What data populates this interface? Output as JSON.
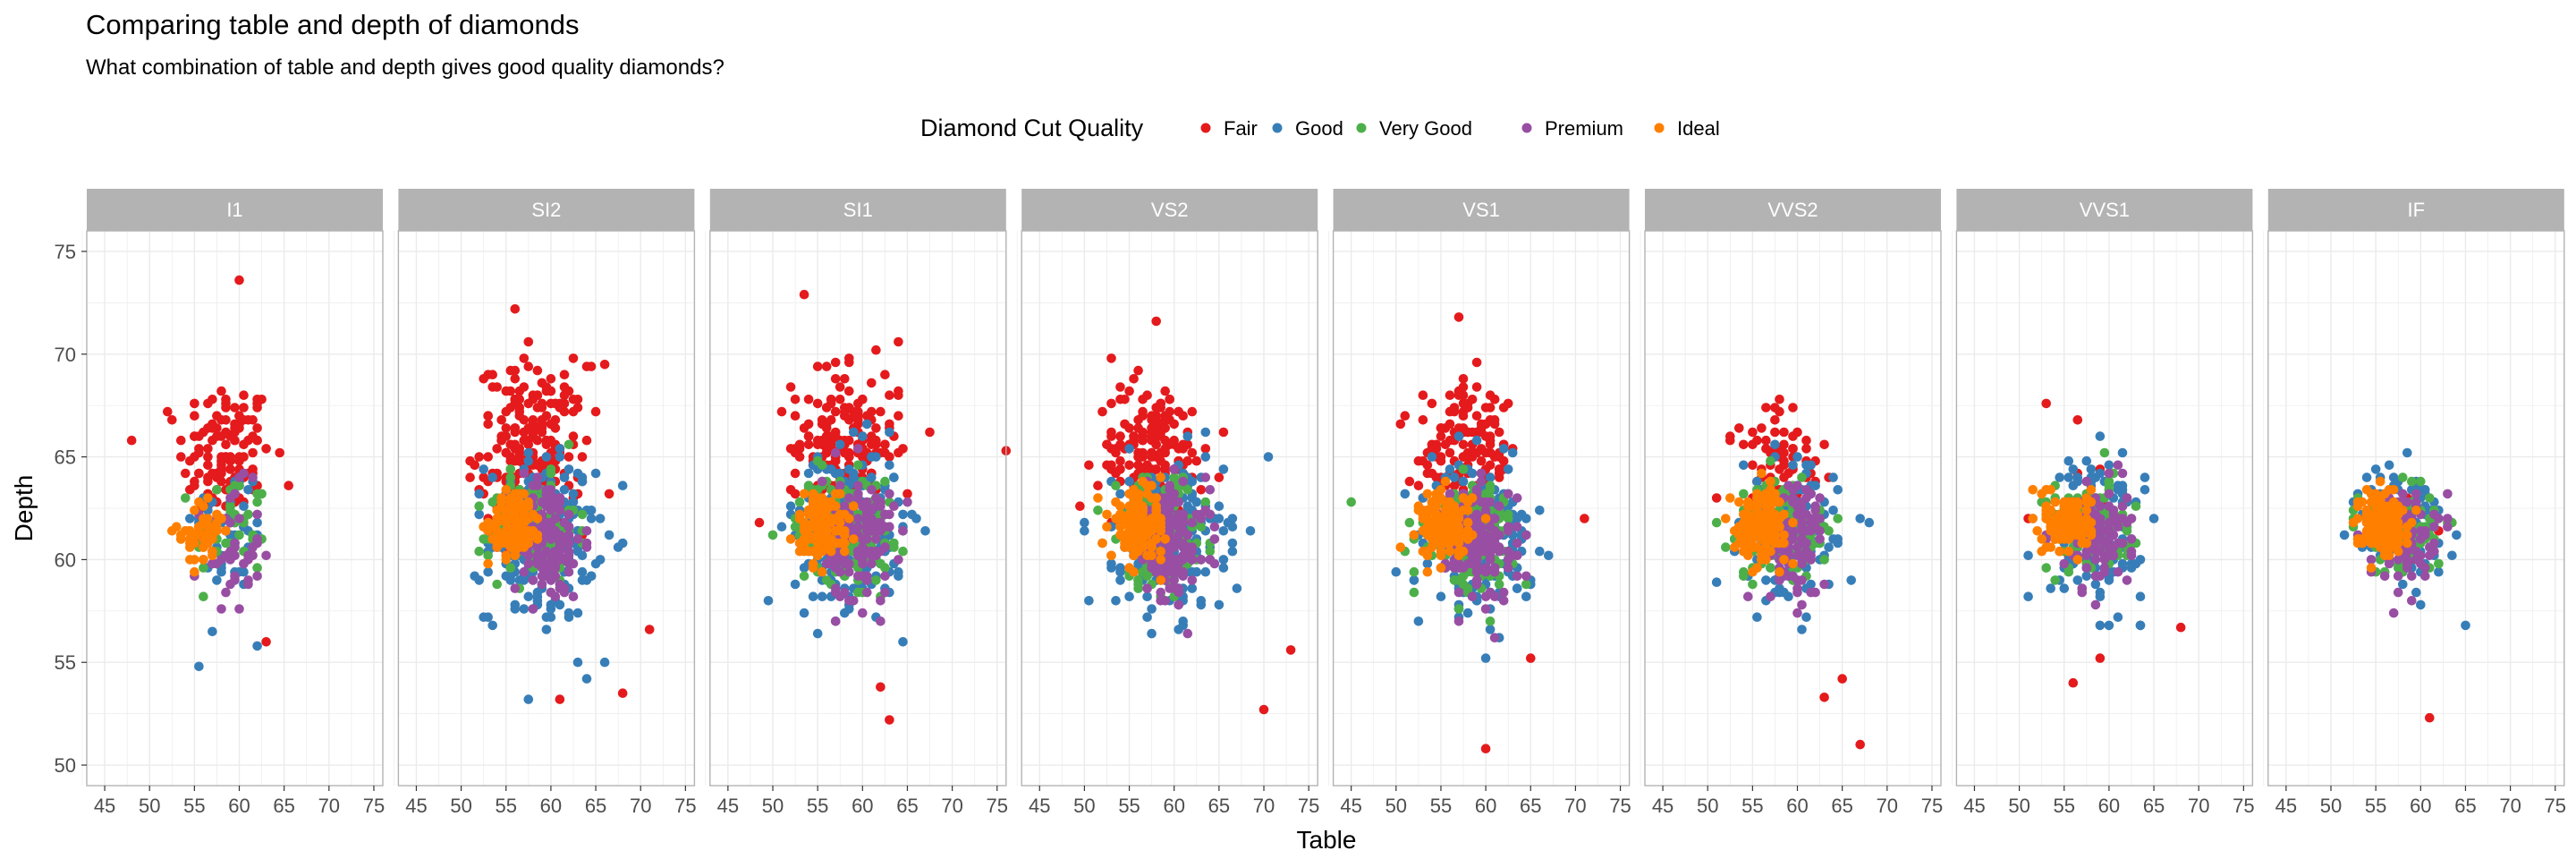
{
  "chart_data": {
    "type": "scatter",
    "title": "Comparing table and depth of diamonds",
    "subtitle": "What combination of table and depth gives good quality diamonds?",
    "xlabel": "Table",
    "ylabel": "Depth",
    "xlim": [
      43,
      76
    ],
    "ylim": [
      49,
      76
    ],
    "xticks": [
      45,
      50,
      55,
      60,
      65,
      70,
      75
    ],
    "yticks": [
      50,
      55,
      60,
      65,
      70,
      75
    ],
    "grid": true,
    "legend": {
      "title": "Diamond Cut Quality",
      "position": "top",
      "entries": [
        "Fair",
        "Good",
        "Very Good",
        "Premium",
        "Ideal"
      ]
    },
    "colors": {
      "Fair": "#E41A1C",
      "Good": "#377EB8",
      "Very Good": "#4DAF4A",
      "Premium": "#984EA3",
      "Ideal": "#FF7F00"
    },
    "facets": [
      {
        "label": "I1",
        "series": [
          {
            "name": "Fair",
            "cx": 58.5,
            "cy": 65,
            "sx": 2.6,
            "sy": 1.9,
            "n": 130,
            "extra": [
              [
                60,
                73.6
              ],
              [
                52.5,
                66.8
              ],
              [
                63,
                56
              ]
            ]
          },
          {
            "name": "Good",
            "cx": 59,
            "cy": 61.5,
            "sx": 2.2,
            "sy": 1.6,
            "n": 50,
            "extra": [
              [
                57,
                56.5
              ],
              [
                62,
                55.8
              ]
            ]
          },
          {
            "name": "Very Good",
            "cx": 59,
            "cy": 61.5,
            "sx": 2.0,
            "sy": 1.4,
            "n": 40,
            "extra": []
          },
          {
            "name": "Premium",
            "cx": 59,
            "cy": 60.5,
            "sx": 1.7,
            "sy": 1.5,
            "n": 45,
            "extra": []
          },
          {
            "name": "Ideal",
            "cx": 56,
            "cy": 61.3,
            "sx": 1.3,
            "sy": 0.8,
            "n": 50,
            "extra": []
          }
        ]
      },
      {
        "label": "SI2",
        "series": [
          {
            "name": "Fair",
            "cx": 58,
            "cy": 65.5,
            "sx": 3.0,
            "sy": 2.0,
            "n": 220,
            "extra": [
              [
                56,
                72.2
              ],
              [
                66,
                69.5
              ],
              [
                61,
                53.2
              ],
              [
                68,
                53.5
              ],
              [
                71,
                56.6
              ]
            ]
          },
          {
            "name": "Good",
            "cx": 59,
            "cy": 61,
            "sx": 3.0,
            "sy": 2.0,
            "n": 220,
            "extra": [
              [
                64,
                54.2
              ],
              [
                66,
                55
              ]
            ]
          },
          {
            "name": "Very Good",
            "cx": 58,
            "cy": 61.5,
            "sx": 2.4,
            "sy": 1.2,
            "n": 140,
            "extra": []
          },
          {
            "name": "Premium",
            "cx": 59.5,
            "cy": 61,
            "sx": 2.0,
            "sy": 1.5,
            "n": 150,
            "extra": []
          },
          {
            "name": "Ideal",
            "cx": 56,
            "cy": 61.8,
            "sx": 1.4,
            "sy": 0.8,
            "n": 130,
            "extra": []
          }
        ]
      },
      {
        "label": "SI1",
        "series": [
          {
            "name": "Fair",
            "cx": 58,
            "cy": 65.5,
            "sx": 3.0,
            "sy": 1.8,
            "n": 200,
            "extra": [
              [
                53.5,
                72.9
              ],
              [
                64,
                70.6
              ],
              [
                76,
                65.3
              ],
              [
                63,
                52.2
              ],
              [
                62,
                53.8
              ]
            ]
          },
          {
            "name": "Good",
            "cx": 58.5,
            "cy": 61.5,
            "sx": 3.0,
            "sy": 1.9,
            "n": 240,
            "extra": []
          },
          {
            "name": "Very Good",
            "cx": 58,
            "cy": 61.5,
            "sx": 2.6,
            "sy": 1.3,
            "n": 170,
            "extra": []
          },
          {
            "name": "Premium",
            "cx": 59.5,
            "cy": 61,
            "sx": 2.0,
            "sy": 1.5,
            "n": 160,
            "extra": []
          },
          {
            "name": "Ideal",
            "cx": 55.5,
            "cy": 61.7,
            "sx": 1.4,
            "sy": 0.8,
            "n": 140,
            "extra": []
          }
        ]
      },
      {
        "label": "VS2",
        "series": [
          {
            "name": "Fair",
            "cx": 57.5,
            "cy": 65.3,
            "sx": 2.9,
            "sy": 1.6,
            "n": 170,
            "extra": [
              [
                58,
                71.6
              ],
              [
                53,
                69.8
              ],
              [
                70,
                52.7
              ],
              [
                73,
                55.6
              ]
            ]
          },
          {
            "name": "Good",
            "cx": 59.5,
            "cy": 61,
            "sx": 3.0,
            "sy": 1.8,
            "n": 230,
            "extra": []
          },
          {
            "name": "Very Good",
            "cx": 58.5,
            "cy": 61.3,
            "sx": 2.5,
            "sy": 1.3,
            "n": 170,
            "extra": []
          },
          {
            "name": "Premium",
            "cx": 59.5,
            "cy": 60.8,
            "sx": 2.1,
            "sy": 1.4,
            "n": 160,
            "extra": []
          },
          {
            "name": "Ideal",
            "cx": 56,
            "cy": 61.7,
            "sx": 1.5,
            "sy": 0.8,
            "n": 140,
            "extra": []
          }
        ]
      },
      {
        "label": "VS1",
        "series": [
          {
            "name": "Fair",
            "cx": 58,
            "cy": 65.2,
            "sx": 2.8,
            "sy": 1.5,
            "n": 140,
            "extra": [
              [
                57,
                71.8
              ],
              [
                71,
                62
              ],
              [
                60,
                50.8
              ],
              [
                65,
                55.2
              ]
            ]
          },
          {
            "name": "Good",
            "cx": 59.5,
            "cy": 61,
            "sx": 2.8,
            "sy": 1.7,
            "n": 200,
            "extra": []
          },
          {
            "name": "Very Good",
            "cx": 58,
            "cy": 61.3,
            "sx": 2.5,
            "sy": 1.2,
            "n": 160,
            "extra": [
              [
                45,
                62.8
              ]
            ]
          },
          {
            "name": "Premium",
            "cx": 59.5,
            "cy": 60.8,
            "sx": 2.0,
            "sy": 1.4,
            "n": 150,
            "extra": []
          },
          {
            "name": "Ideal",
            "cx": 55.5,
            "cy": 61.7,
            "sx": 1.4,
            "sy": 0.8,
            "n": 150,
            "extra": []
          }
        ]
      },
      {
        "label": "VVS2",
        "series": [
          {
            "name": "Fair",
            "cx": 58,
            "cy": 64.8,
            "sx": 2.7,
            "sy": 1.4,
            "n": 70,
            "extra": [
              [
                67,
                51
              ],
              [
                63,
                53.3
              ],
              [
                65,
                54.2
              ]
            ]
          },
          {
            "name": "Good",
            "cx": 59,
            "cy": 61.2,
            "sx": 2.7,
            "sy": 1.6,
            "n": 150,
            "extra": [
              [
                51,
                58.9
              ]
            ]
          },
          {
            "name": "Very Good",
            "cx": 58.5,
            "cy": 61.5,
            "sx": 2.5,
            "sy": 1.2,
            "n": 140,
            "extra": []
          },
          {
            "name": "Premium",
            "cx": 59.5,
            "cy": 61,
            "sx": 1.9,
            "sy": 1.4,
            "n": 110,
            "extra": []
          },
          {
            "name": "Ideal",
            "cx": 56,
            "cy": 61.7,
            "sx": 1.4,
            "sy": 0.8,
            "n": 150,
            "extra": []
          }
        ]
      },
      {
        "label": "VVS1",
        "series": [
          {
            "name": "Fair",
            "cx": 58,
            "cy": 63,
            "sx": 3.0,
            "sy": 2.5,
            "n": 14,
            "extra": [
              [
                53,
                67.6
              ],
              [
                59,
                55.2
              ],
              [
                56,
                54
              ],
              [
                68,
                56.7
              ]
            ]
          },
          {
            "name": "Good",
            "cx": 58.5,
            "cy": 61.5,
            "sx": 2.6,
            "sy": 1.7,
            "n": 140,
            "extra": [
              [
                51,
                58.2
              ]
            ]
          },
          {
            "name": "Very Good",
            "cx": 58,
            "cy": 61.6,
            "sx": 2.4,
            "sy": 1.1,
            "n": 140,
            "extra": []
          },
          {
            "name": "Premium",
            "cx": 58.5,
            "cy": 61.2,
            "sx": 1.8,
            "sy": 1.2,
            "n": 100,
            "extra": []
          },
          {
            "name": "Ideal",
            "cx": 55.5,
            "cy": 61.8,
            "sx": 1.3,
            "sy": 0.7,
            "n": 150,
            "extra": []
          }
        ]
      },
      {
        "label": "IF",
        "series": [
          {
            "name": "Fair",
            "cx": 58,
            "cy": 61,
            "sx": 2.5,
            "sy": 1.5,
            "n": 5,
            "extra": [
              [
                61,
                52.3
              ]
            ]
          },
          {
            "name": "Good",
            "cx": 58.5,
            "cy": 61.5,
            "sx": 2.4,
            "sy": 1.6,
            "n": 100,
            "extra": [
              [
                65,
                56.8
              ]
            ]
          },
          {
            "name": "Very Good",
            "cx": 58,
            "cy": 61.5,
            "sx": 2.2,
            "sy": 1.1,
            "n": 110,
            "extra": []
          },
          {
            "name": "Premium",
            "cx": 58,
            "cy": 61.2,
            "sx": 1.8,
            "sy": 1.1,
            "n": 90,
            "extra": []
          },
          {
            "name": "Ideal",
            "cx": 55.5,
            "cy": 61.8,
            "sx": 1.3,
            "sy": 0.7,
            "n": 170,
            "extra": []
          }
        ]
      }
    ]
  }
}
